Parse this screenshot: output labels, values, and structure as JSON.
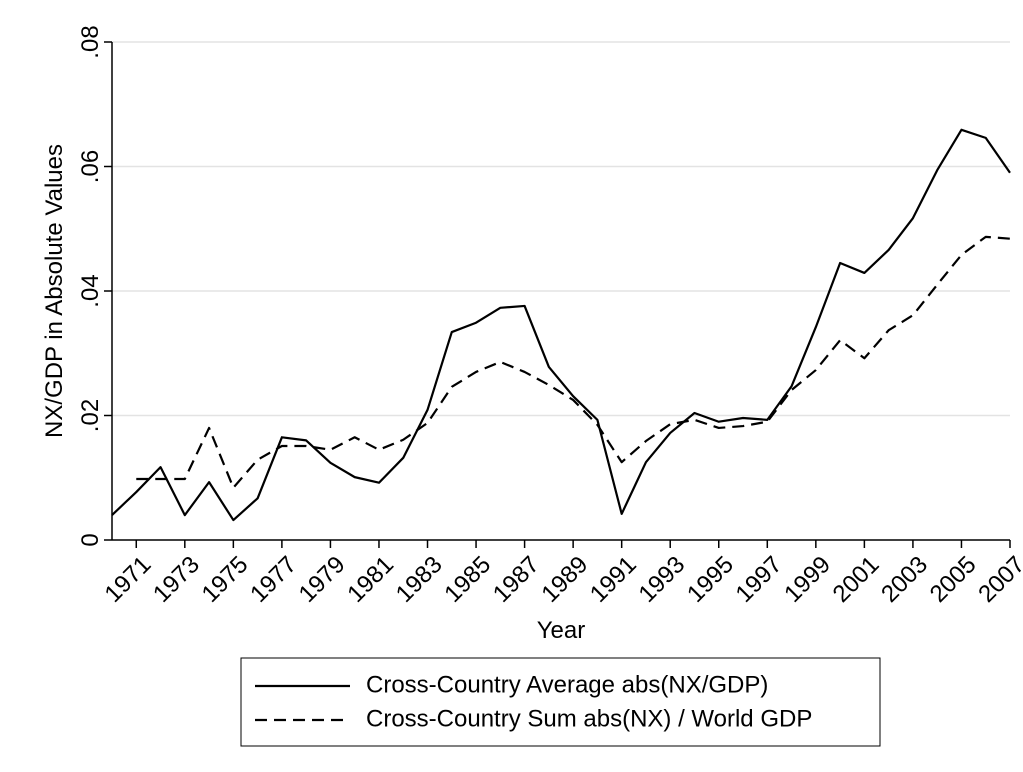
{
  "chart_data": {
    "type": "line",
    "xlabel": "Year",
    "ylabel": "NX/GDP in Absolute Values",
    "x": [
      1970,
      1971,
      1972,
      1973,
      1974,
      1975,
      1976,
      1977,
      1978,
      1979,
      1980,
      1981,
      1982,
      1983,
      1984,
      1985,
      1986,
      1987,
      1988,
      1989,
      1990,
      1991,
      1992,
      1993,
      1994,
      1995,
      1996,
      1997,
      1998,
      1999,
      2000,
      2001,
      2002,
      2003,
      2004,
      2005,
      2006,
      2007
    ],
    "xlim": [
      1970,
      2007
    ],
    "xticks": [
      1971,
      1973,
      1975,
      1977,
      1979,
      1981,
      1983,
      1985,
      1987,
      1989,
      1991,
      1993,
      1995,
      1997,
      1999,
      2001,
      2003,
      2005,
      2007
    ],
    "ylim": [
      0,
      0.08
    ],
    "yticks": [
      0,
      {
        "value": 0.02,
        "label": ".02"
      },
      {
        "value": 0.04,
        "label": ".04"
      },
      {
        "value": 0.06,
        "label": ".06"
      },
      {
        "value": 0.08,
        "label": ".08"
      }
    ],
    "grid": true,
    "series": [
      {
        "name": "Cross-Country Average abs(NX/GDP)",
        "color": "#000000",
        "style": "solid",
        "values": [
          0.004,
          0.0077,
          0.0117,
          0.004,
          0.0093,
          0.0032,
          0.0067,
          0.0165,
          0.016,
          0.0124,
          0.0101,
          0.0092,
          0.0132,
          0.0209,
          0.0334,
          0.0349,
          0.0373,
          0.0376,
          0.0278,
          0.0231,
          0.0193,
          0.0042,
          0.0125,
          0.0172,
          0.0204,
          0.019,
          0.0196,
          0.0193,
          0.0247,
          0.0342,
          0.0445,
          0.0429,
          0.0466,
          0.0517,
          0.0594,
          0.0659,
          0.0646,
          0.059
        ]
      },
      {
        "name": "Cross-Country Sum abs(NX) / World GDP",
        "color": "#000000",
        "style": "dashed",
        "values": [
          null,
          0.0098,
          0.0098,
          0.0098,
          0.018,
          0.0084,
          0.0129,
          0.0151,
          0.0151,
          0.0145,
          0.0165,
          0.0145,
          0.0161,
          0.0188,
          0.0246,
          0.027,
          0.0286,
          0.027,
          0.0249,
          0.0225,
          0.0185,
          0.0125,
          0.0159,
          0.0186,
          0.0193,
          0.018,
          0.0183,
          0.019,
          0.0241,
          0.0273,
          0.0321,
          0.0292,
          0.0337,
          0.0361,
          0.041,
          0.0458,
          0.0487,
          0.0484
        ]
      }
    ]
  }
}
